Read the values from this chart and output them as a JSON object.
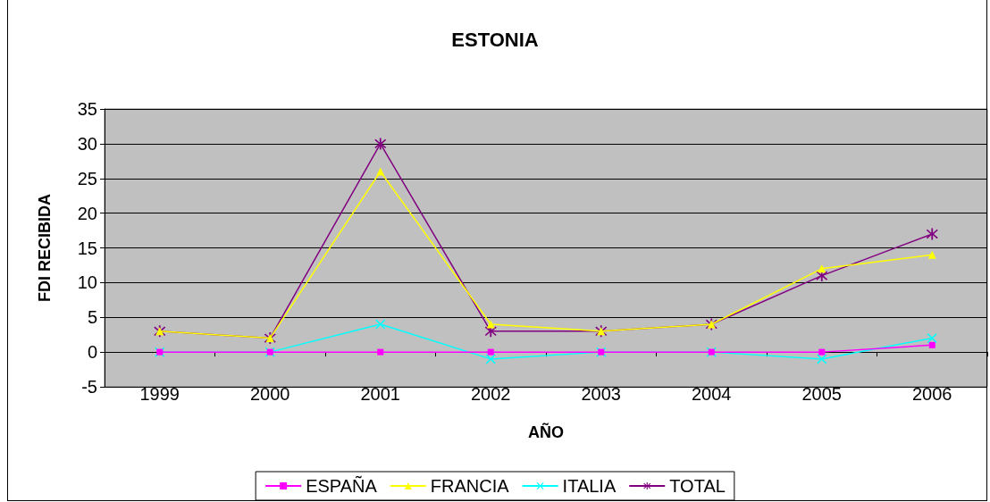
{
  "chart_data": {
    "type": "line",
    "title": "ESTONIA",
    "xlabel": "AÑO",
    "ylabel": "FDI RECIBIDA",
    "categories": [
      "1999",
      "2000",
      "2001",
      "2002",
      "2003",
      "2004",
      "2005",
      "2006"
    ],
    "series": [
      {
        "name": "ESPAÑA",
        "color": "#ff00ff",
        "marker": "square",
        "values": [
          0,
          0,
          0,
          0,
          0,
          0,
          0,
          1
        ]
      },
      {
        "name": "FRANCIA",
        "color": "#ffff00",
        "marker": "triangle",
        "values": [
          3,
          2,
          26,
          4,
          3,
          4,
          12,
          14
        ]
      },
      {
        "name": "ITALIA",
        "color": "#00ffff",
        "marker": "cross",
        "values": [
          0,
          0,
          4,
          -1,
          0,
          0,
          -1,
          2
        ]
      },
      {
        "name": "TOTAL",
        "color": "#800080",
        "marker": "star",
        "values": [
          3,
          2,
          30,
          3,
          3,
          4,
          11,
          17
        ]
      }
    ],
    "ylim": [
      -5,
      35
    ],
    "yticks": [
      -5,
      0,
      5,
      10,
      15,
      20,
      25,
      30,
      35
    ],
    "grid": "y",
    "legend": "bottom",
    "line_style": "solid"
  }
}
